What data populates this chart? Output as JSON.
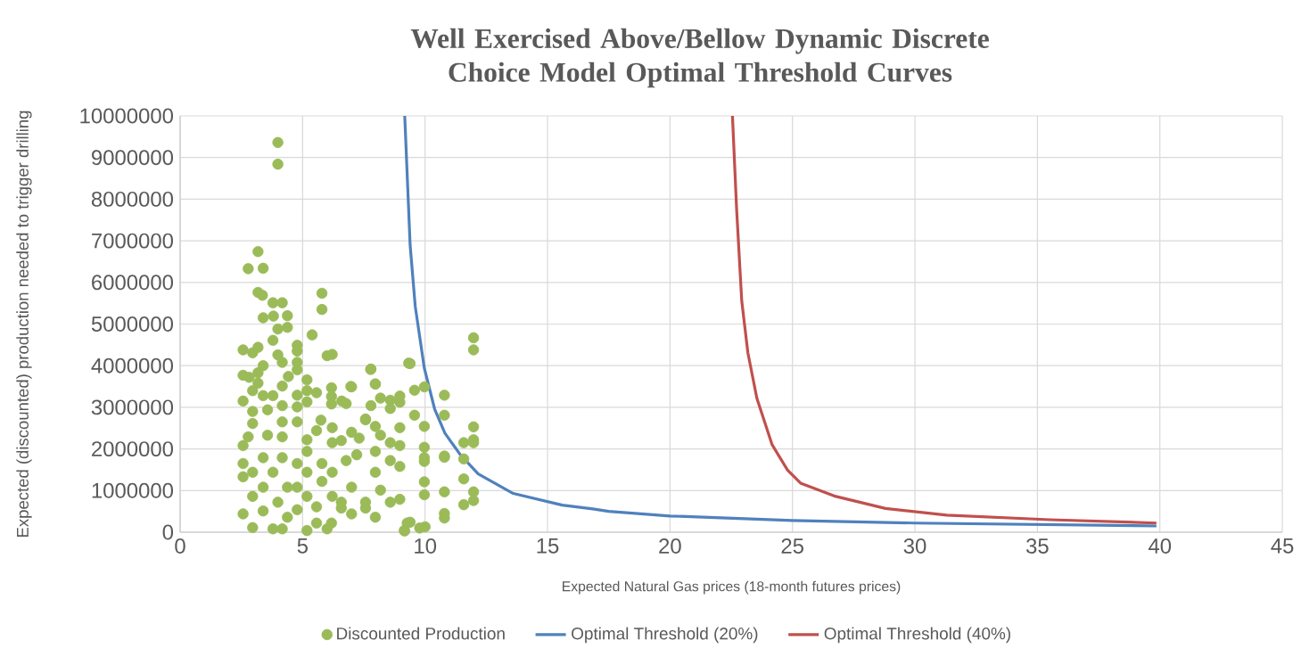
{
  "chart_data": {
    "type": "scatter",
    "title": "Well Exercised Above/Bellow Dynamic Discrete Choice Model Optimal Threshold Curves",
    "xlabel": "Expected Natural Gas prices (18-month futures prices)",
    "ylabel": "Expected (discounted) production needed to trigger drilling",
    "xlim": [
      0,
      45
    ],
    "ylim": [
      0,
      10000000
    ],
    "xticks": [
      0,
      5,
      10,
      15,
      20,
      25,
      30,
      35,
      40,
      45
    ],
    "yticks": [
      0,
      1000000,
      2000000,
      3000000,
      4000000,
      5000000,
      6000000,
      7000000,
      8000000,
      9000000,
      10000000
    ],
    "grid": true,
    "legend": "bottom",
    "series": [
      {
        "name": "Discounted Production",
        "marker": "circle",
        "color": "#9bbb59",
        "x": [
          3.99,
          3.99,
          3.18,
          2.78,
          3.39,
          3.18,
          3.36,
          3.79,
          4.17,
          3.39,
          3.81,
          4.38,
          3.99,
          4.38,
          3.79,
          5.79,
          5.79,
          5.39,
          2.57,
          2.96,
          3.18,
          4.78,
          4.78,
          6.0,
          6.21,
          3.99,
          3.39,
          4.17,
          4.78,
          4.78,
          2.57,
          2.82,
          3.18,
          4.42,
          5.18,
          7.79,
          7.0,
          7.97,
          6.18,
          3.18,
          2.96,
          4.17,
          5.18,
          5.57,
          6.18,
          4.78,
          3.79,
          3.39,
          2.57,
          5.18,
          6.6,
          6.78,
          6.18,
          8.97,
          8.58,
          8.18,
          7.79,
          8.97,
          8.58,
          2.96,
          3.57,
          4.17,
          4.78,
          7.57,
          8.97,
          7.97,
          5.75,
          4.78,
          2.96,
          4.17,
          6.21,
          6.58,
          7.0,
          7.31,
          8.18,
          8.58,
          8.97,
          2.57,
          2.78,
          3.57,
          4.17,
          5.18,
          5.57,
          6.21,
          2.57,
          2.57,
          2.57,
          2.96,
          2.96,
          2.96,
          3.39,
          3.39,
          3.39,
          3.79,
          3.79,
          3.99,
          4.17,
          4.17,
          4.38,
          4.38,
          4.78,
          4.78,
          4.78,
          5.18,
          5.18,
          5.18,
          5.18,
          5.57,
          5.57,
          5.79,
          5.79,
          6.0,
          6.18,
          6.21,
          6.21,
          6.58,
          6.58,
          6.78,
          7.0,
          7.0,
          7.21,
          7.57,
          7.57,
          7.97,
          7.97,
          7.97,
          8.18,
          8.58,
          8.58,
          8.97,
          8.97,
          9.15,
          9.27,
          9.33,
          11.98,
          11.98,
          9.39,
          7.78,
          6.97,
          7.97,
          9.97,
          10.79,
          9.57,
          9.57,
          10.79,
          7.57,
          9.97,
          11.98,
          11.98,
          11.58,
          11.98,
          9.97,
          10.79,
          10.79,
          11.58,
          9.97,
          9.97,
          11.58,
          9.97,
          10.79,
          11.98,
          11.98,
          11.58,
          9.97,
          10.79,
          10.79,
          9.39,
          9.78,
          10.0,
          9.17
        ],
        "values": [
          9360000,
          8840000,
          6740000,
          6330000,
          6340000,
          5760000,
          5690000,
          5510000,
          5510000,
          5150000,
          5190000,
          5200000,
          4880000,
          4920000,
          4610000,
          5740000,
          5350000,
          4740000,
          4380000,
          4310000,
          4440000,
          4490000,
          4350000,
          4240000,
          4270000,
          4260000,
          4000000,
          4080000,
          4080000,
          3900000,
          3770000,
          3720000,
          3830000,
          3740000,
          3660000,
          3920000,
          3490000,
          3560000,
          3470000,
          3580000,
          3400000,
          3510000,
          3400000,
          3350000,
          3260000,
          3290000,
          3280000,
          3280000,
          3150000,
          3130000,
          3150000,
          3090000,
          3080000,
          3270000,
          3170000,
          3220000,
          3040000,
          3120000,
          2970000,
          2900000,
          2940000,
          3040000,
          3010000,
          2720000,
          2510000,
          2540000,
          2690000,
          2650000,
          2610000,
          2650000,
          2510000,
          2200000,
          2400000,
          2260000,
          2330000,
          2150000,
          2080000,
          2080000,
          2290000,
          2330000,
          2290000,
          2220000,
          2440000,
          2150000,
          1650000,
          1330000,
          440000,
          110000,
          860000,
          1440000,
          1790000,
          1080000,
          510000,
          80000,
          1440000,
          720000,
          80000,
          1790000,
          1080000,
          360000,
          1650000,
          1080000,
          540000,
          1940000,
          1440000,
          860000,
          40000,
          610000,
          220000,
          1650000,
          1220000,
          80000,
          220000,
          1440000,
          860000,
          720000,
          580000,
          1720000,
          1080000,
          440000,
          1860000,
          720000,
          580000,
          1940000,
          1440000,
          360000,
          1010000,
          1720000,
          720000,
          1580000,
          790000,
          40000,
          220000,
          4060000,
          4670000,
          4380000,
          4050000,
          3910000,
          3500000,
          3560000,
          3490000,
          3290000,
          3410000,
          2810000,
          2810000,
          2700000,
          2540000,
          2530000,
          2220000,
          2150000,
          2150000,
          2040000,
          1830000,
          1800000,
          1760000,
          1790000,
          1700000,
          1280000,
          1210000,
          970000,
          970000,
          760000,
          660000,
          900000,
          450000,
          340000,
          240000,
          100000,
          130000,
          30000
        ]
      },
      {
        "name": "Optimal Threshold (20%)",
        "type": "line",
        "marker": "none",
        "color": "#4f81bd",
        "x": [
          9.17,
          9.39,
          9.6,
          9.97,
          10.39,
          10.81,
          11.44,
          12.17,
          13.6,
          15.6,
          16.85,
          17.5,
          20,
          25,
          30,
          39.86
        ],
        "values": [
          10000000,
          6900000,
          5420000,
          3940000,
          2960000,
          2380000,
          1860000,
          1400000,
          930000,
          650000,
          560000,
          500000,
          390000,
          280000,
          220000,
          150000
        ]
      },
      {
        "name": "Optimal Threshold (40%)",
        "type": "line",
        "marker": "none",
        "color": "#c0504d",
        "x": [
          22.55,
          22.72,
          22.93,
          23.18,
          23.55,
          24.17,
          24.8,
          25.33,
          26.7,
          28.8,
          31.3,
          35.5,
          39.86
        ],
        "values": [
          10000000,
          7760000,
          5550000,
          4310000,
          3210000,
          2100000,
          1490000,
          1180000,
          870000,
          570000,
          410000,
          300000,
          220000
        ]
      }
    ]
  }
}
